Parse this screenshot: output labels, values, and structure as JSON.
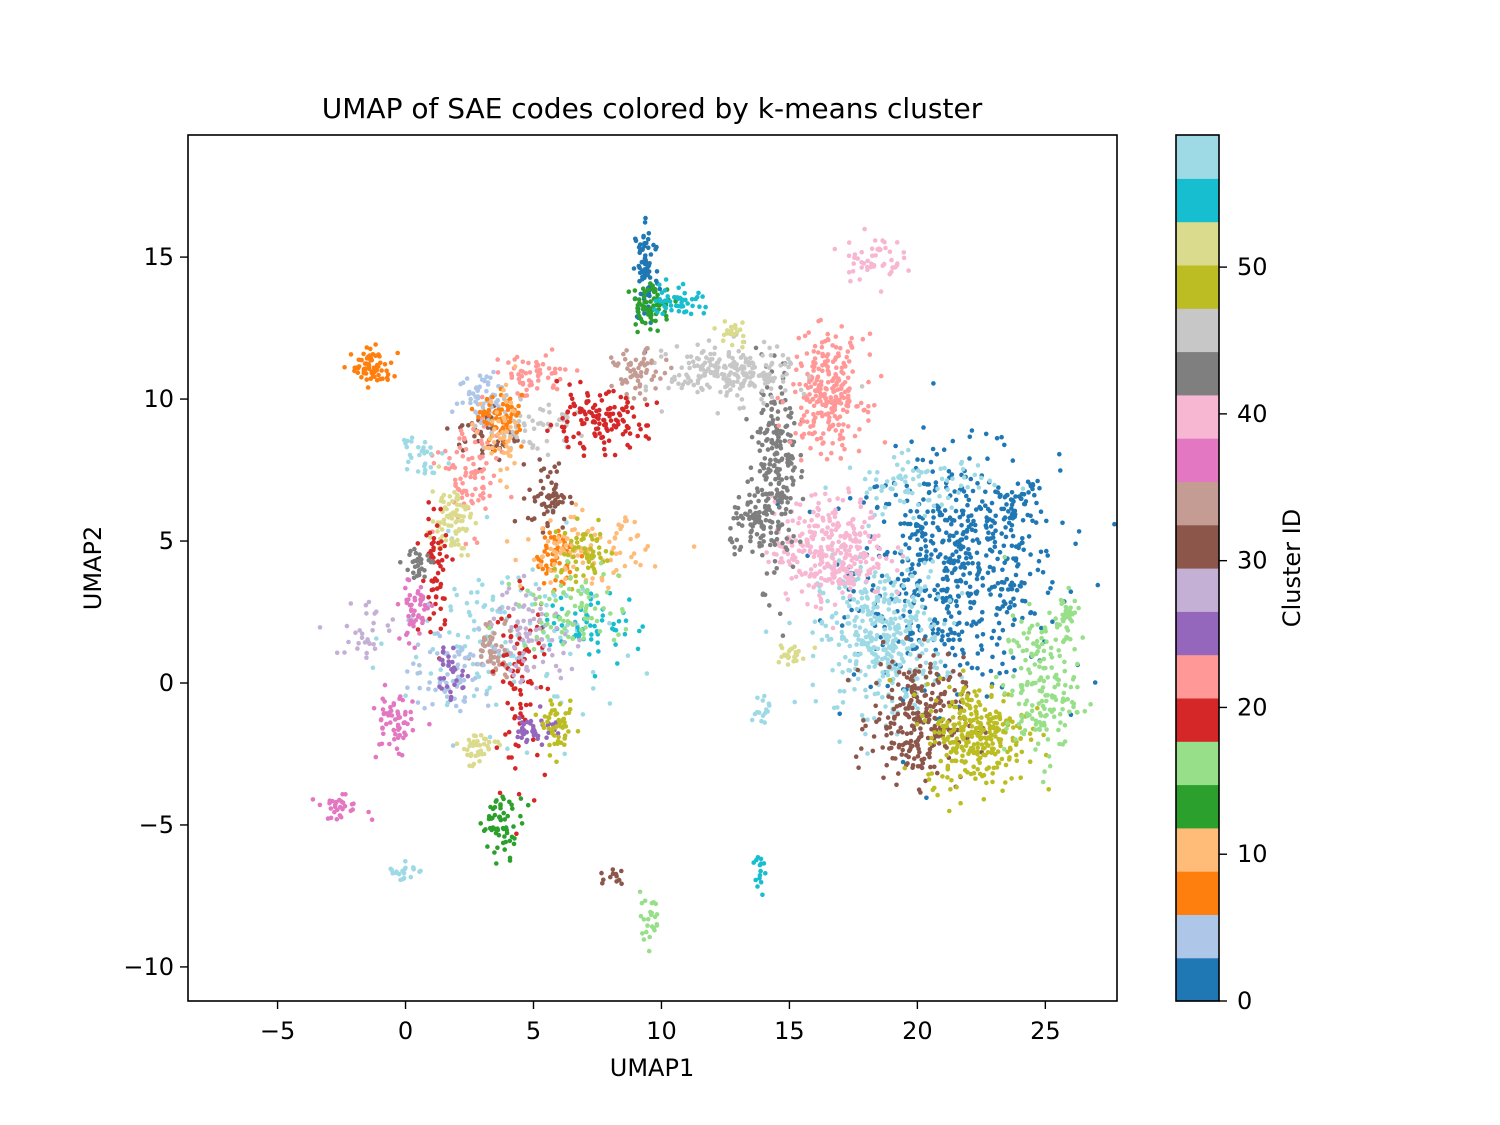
{
  "chart_data": {
    "type": "scatter",
    "title": "UMAP of SAE codes colored by k-means cluster",
    "xlabel": "UMAP1",
    "ylabel": "UMAP2",
    "xlim": [
      -8.5,
      27.8
    ],
    "ylim": [
      -11.2,
      19.3
    ],
    "xticks": [
      -5,
      0,
      5,
      10,
      15,
      20,
      25
    ],
    "yticks": [
      -10,
      -5,
      0,
      5,
      10,
      15
    ],
    "grid": false,
    "colorbar": {
      "label": "Cluster ID",
      "range": [
        0,
        59
      ],
      "ticks": [
        0,
        10,
        20,
        30,
        40,
        50
      ],
      "bands": 20,
      "colormap": "tab20",
      "colors": [
        "#1f77b4",
        "#aec7e8",
        "#ff7f0e",
        "#ffbb78",
        "#2ca02c",
        "#98df8a",
        "#d62728",
        "#ff9896",
        "#9467bd",
        "#c5b0d5",
        "#8c564b",
        "#c49c94",
        "#e377c2",
        "#f7b6d2",
        "#7f7f7f",
        "#c7c7c7",
        "#bcbd22",
        "#dbdb8d",
        "#17becf",
        "#9edae5"
      ]
    },
    "clusters": [
      {
        "label": 0,
        "color": "#1f77b4",
        "center": [
          21.5,
          4.0
        ],
        "spread": [
          2.0,
          2.0
        ],
        "n": 600
      },
      {
        "label": 0,
        "color": "#1f77b4",
        "center": [
          9.4,
          14.5
        ],
        "spread": [
          0.25,
          1.0
        ],
        "n": 80
      },
      {
        "label": 0,
        "color": "#1f77b4",
        "center": [
          23.7,
          6.3
        ],
        "spread": [
          0.4,
          0.4
        ],
        "n": 40
      },
      {
        "label": 43,
        "color": "#9edae5",
        "center": [
          18.6,
          1.6
        ],
        "spread": [
          1.2,
          1.3
        ],
        "n": 380
      },
      {
        "label": 43,
        "color": "#9edae5",
        "center": [
          20.0,
          7.0
        ],
        "spread": [
          1.5,
          0.5
        ],
        "n": 80
      },
      {
        "label": 43,
        "color": "#9edae5",
        "center": [
          4.0,
          1.5
        ],
        "spread": [
          2.0,
          1.6
        ],
        "n": 140
      },
      {
        "label": 31,
        "color": "#8c564b",
        "center": [
          20.0,
          -1.3
        ],
        "spread": [
          0.9,
          1.1
        ],
        "n": 260
      },
      {
        "label": 31,
        "color": "#8c564b",
        "center": [
          5.6,
          6.6
        ],
        "spread": [
          0.4,
          0.6
        ],
        "n": 60
      },
      {
        "label": 31,
        "color": "#8c564b",
        "center": [
          3.2,
          8.7
        ],
        "spread": [
          0.6,
          0.5
        ],
        "n": 50
      },
      {
        "label": 49,
        "color": "#bcbd22",
        "center": [
          22.3,
          -1.8
        ],
        "spread": [
          1.0,
          0.9
        ],
        "n": 300
      },
      {
        "label": 15,
        "color": "#98df8a",
        "center": [
          24.8,
          -0.2
        ],
        "spread": [
          0.7,
          1.3
        ],
        "n": 170
      },
      {
        "label": 15,
        "color": "#98df8a",
        "center": [
          25.8,
          2.2
        ],
        "spread": [
          0.2,
          0.6
        ],
        "n": 40
      },
      {
        "label": 38,
        "color": "#f7b6d2",
        "center": [
          16.6,
          4.7
        ],
        "spread": [
          1.1,
          0.9
        ],
        "n": 320
      },
      {
        "label": 38,
        "color": "#f7b6d2",
        "center": [
          18.2,
          15.0
        ],
        "spread": [
          0.6,
          0.4
        ],
        "n": 50
      },
      {
        "label": 41,
        "color": "#7f7f7f",
        "center": [
          14.5,
          7.6
        ],
        "spread": [
          0.4,
          1.9
        ],
        "n": 220
      },
      {
        "label": 41,
        "color": "#7f7f7f",
        "center": [
          13.7,
          5.6
        ],
        "spread": [
          0.5,
          0.6
        ],
        "n": 80
      },
      {
        "label": 22,
        "color": "#ff9896",
        "center": [
          16.5,
          10.2
        ],
        "spread": [
          0.7,
          1.0
        ],
        "n": 260
      },
      {
        "label": 22,
        "color": "#ff9896",
        "center": [
          2.5,
          7.3
        ],
        "spread": [
          0.6,
          1.0
        ],
        "n": 90
      },
      {
        "label": 22,
        "color": "#ff9896",
        "center": [
          4.9,
          10.8
        ],
        "spread": [
          0.8,
          0.4
        ],
        "n": 60
      },
      {
        "label": 45,
        "color": "#c7c7c7",
        "center": [
          12.7,
          10.9
        ],
        "spread": [
          1.2,
          0.5
        ],
        "n": 220
      },
      {
        "label": 45,
        "color": "#c7c7c7",
        "center": [
          5.0,
          9.0
        ],
        "spread": [
          1.0,
          0.4
        ],
        "n": 60
      },
      {
        "label": 33,
        "color": "#c49c94",
        "center": [
          9.1,
          10.9
        ],
        "spread": [
          0.5,
          0.4
        ],
        "n": 60
      },
      {
        "label": 33,
        "color": "#c49c94",
        "center": [
          3.5,
          1.2
        ],
        "spread": [
          0.4,
          0.5
        ],
        "n": 60
      },
      {
        "label": 13,
        "color": "#2ca02c",
        "center": [
          9.6,
          13.3
        ],
        "spread": [
          0.4,
          0.4
        ],
        "n": 70
      },
      {
        "label": 13,
        "color": "#2ca02c",
        "center": [
          3.8,
          -5.0
        ],
        "spread": [
          0.4,
          0.5
        ],
        "n": 60
      },
      {
        "label": 55,
        "color": "#17becf",
        "center": [
          10.6,
          13.5
        ],
        "spread": [
          0.5,
          0.3
        ],
        "n": 50
      },
      {
        "label": 55,
        "color": "#17becf",
        "center": [
          7.2,
          2.0
        ],
        "spread": [
          1.0,
          0.6
        ],
        "n": 60
      },
      {
        "label": 52,
        "color": "#dbdb8d",
        "center": [
          12.8,
          12.4
        ],
        "spread": [
          0.3,
          0.3
        ],
        "n": 20
      },
      {
        "label": 52,
        "color": "#dbdb8d",
        "center": [
          1.8,
          5.8
        ],
        "spread": [
          0.4,
          0.6
        ],
        "n": 80
      },
      {
        "label": 52,
        "color": "#dbdb8d",
        "center": [
          2.8,
          -2.3
        ],
        "spread": [
          0.4,
          0.3
        ],
        "n": 40
      },
      {
        "label": 19,
        "color": "#d62728",
        "center": [
          7.4,
          9.2
        ],
        "spread": [
          1.0,
          0.5
        ],
        "n": 130
      },
      {
        "label": 19,
        "color": "#d62728",
        "center": [
          4.5,
          0.0
        ],
        "spread": [
          0.5,
          1.6
        ],
        "n": 80
      },
      {
        "label": 19,
        "color": "#d62728",
        "center": [
          1.2,
          4.0
        ],
        "spread": [
          0.3,
          1.2
        ],
        "n": 60
      },
      {
        "label": 4,
        "color": "#aec7e8",
        "center": [
          3.1,
          10.1
        ],
        "spread": [
          0.5,
          0.5
        ],
        "n": 60
      },
      {
        "label": 4,
        "color": "#aec7e8",
        "center": [
          1.8,
          0.5
        ],
        "spread": [
          0.8,
          0.8
        ],
        "n": 80
      },
      {
        "label": 7,
        "color": "#ff7f0e",
        "center": [
          -1.3,
          11.1
        ],
        "spread": [
          0.4,
          0.3
        ],
        "n": 70
      },
      {
        "label": 7,
        "color": "#ff7f0e",
        "center": [
          3.8,
          9.3
        ],
        "spread": [
          0.4,
          0.4
        ],
        "n": 70
      },
      {
        "label": 7,
        "color": "#ff7f0e",
        "center": [
          5.8,
          4.5
        ],
        "spread": [
          0.4,
          0.5
        ],
        "n": 60
      },
      {
        "label": 10,
        "color": "#ffbb78",
        "center": [
          7.0,
          4.6
        ],
        "spread": [
          1.2,
          0.6
        ],
        "n": 110
      },
      {
        "label": 10,
        "color": "#ffbb78",
        "center": [
          3.8,
          8.5
        ],
        "spread": [
          0.4,
          0.8
        ],
        "n": 50
      },
      {
        "label": 36,
        "color": "#e377c2",
        "center": [
          0.4,
          2.6
        ],
        "spread": [
          0.3,
          0.6
        ],
        "n": 50
      },
      {
        "label": 36,
        "color": "#e377c2",
        "center": [
          -0.5,
          -1.5
        ],
        "spread": [
          0.4,
          0.6
        ],
        "n": 60
      },
      {
        "label": 36,
        "color": "#e377c2",
        "center": [
          -2.5,
          -4.4
        ],
        "spread": [
          0.5,
          0.2
        ],
        "n": 30
      },
      {
        "label": 28,
        "color": "#c5b0d5",
        "center": [
          5.0,
          1.8
        ],
        "spread": [
          0.8,
          0.9
        ],
        "n": 80
      },
      {
        "label": 28,
        "color": "#c5b0d5",
        "center": [
          -1.5,
          1.8
        ],
        "spread": [
          0.6,
          0.6
        ],
        "n": 30
      },
      {
        "label": 26,
        "color": "#9467bd",
        "center": [
          5.1,
          -1.6
        ],
        "spread": [
          0.4,
          0.3
        ],
        "n": 40
      },
      {
        "label": 26,
        "color": "#9467bd",
        "center": [
          1.7,
          0.4
        ],
        "spread": [
          0.4,
          0.5
        ],
        "n": 30
      },
      {
        "label": 49,
        "color": "#bcbd22",
        "center": [
          6.0,
          -1.6
        ],
        "spread": [
          0.3,
          0.4
        ],
        "n": 50
      },
      {
        "label": 49,
        "color": "#bcbd22",
        "center": [
          7.0,
          4.5
        ],
        "spread": [
          0.6,
          0.5
        ],
        "n": 60
      },
      {
        "label": 15,
        "color": "#98df8a",
        "center": [
          6.4,
          2.6
        ],
        "spread": [
          1.0,
          0.7
        ],
        "n": 80
      },
      {
        "label": 15,
        "color": "#98df8a",
        "center": [
          9.5,
          -8.3
        ],
        "spread": [
          0.3,
          0.4
        ],
        "n": 25
      },
      {
        "label": 41,
        "color": "#7f7f7f",
        "center": [
          0.5,
          4.2
        ],
        "spread": [
          0.3,
          0.3
        ],
        "n": 30
      },
      {
        "label": 31,
        "color": "#8c564b",
        "center": [
          8.2,
          -6.8
        ],
        "spread": [
          0.2,
          0.2
        ],
        "n": 12
      },
      {
        "label": 43,
        "color": "#9edae5",
        "center": [
          0.6,
          8.2
        ],
        "spread": [
          0.4,
          0.4
        ],
        "n": 30
      },
      {
        "label": 43,
        "color": "#9edae5",
        "center": [
          -0.2,
          -6.6
        ],
        "spread": [
          0.3,
          0.2
        ],
        "n": 20
      },
      {
        "label": 43,
        "color": "#9edae5",
        "center": [
          13.9,
          -0.9
        ],
        "spread": [
          0.2,
          0.3
        ],
        "n": 15
      },
      {
        "label": 52,
        "color": "#dbdb8d",
        "center": [
          15.0,
          1.0
        ],
        "spread": [
          0.3,
          0.2
        ],
        "n": 25
      },
      {
        "label": 55,
        "color": "#17becf",
        "center": [
          13.8,
          -6.7
        ],
        "spread": [
          0.1,
          0.6
        ],
        "n": 15
      }
    ]
  }
}
